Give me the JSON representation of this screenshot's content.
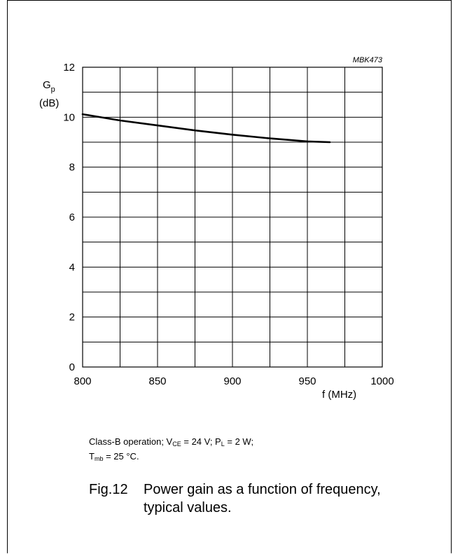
{
  "chart_data": {
    "type": "line",
    "code": "MBK473",
    "ylabel_main": "G",
    "ylabel_sub": "p",
    "yunit": "(dB)",
    "xlabel": "f (MHz)",
    "xlim": [
      800,
      1000
    ],
    "ylim": [
      0,
      12
    ],
    "xticks": [
      800,
      850,
      900,
      950,
      1000
    ],
    "yticks": [
      0,
      2,
      4,
      6,
      8,
      10,
      12
    ],
    "grid": true,
    "series": [
      {
        "x": [
          800,
          810,
          825,
          850,
          875,
          900,
          925,
          950,
          965
        ],
        "y": [
          10.12,
          10.02,
          9.87,
          9.67,
          9.47,
          9.3,
          9.15,
          9.03,
          9.0
        ]
      }
    ]
  },
  "conditions": {
    "t1": "Class-B operation; V",
    "s1": "CE",
    "t2": " = 24 V; P",
    "s2": "L",
    "t3": " = 2 W;",
    "t4": "T",
    "s3": "mb",
    "t5": " = 25 °C."
  },
  "caption": {
    "fig": "Fig.12",
    "line1": "Power gain as a function of frequency,",
    "line2": "typical values."
  }
}
